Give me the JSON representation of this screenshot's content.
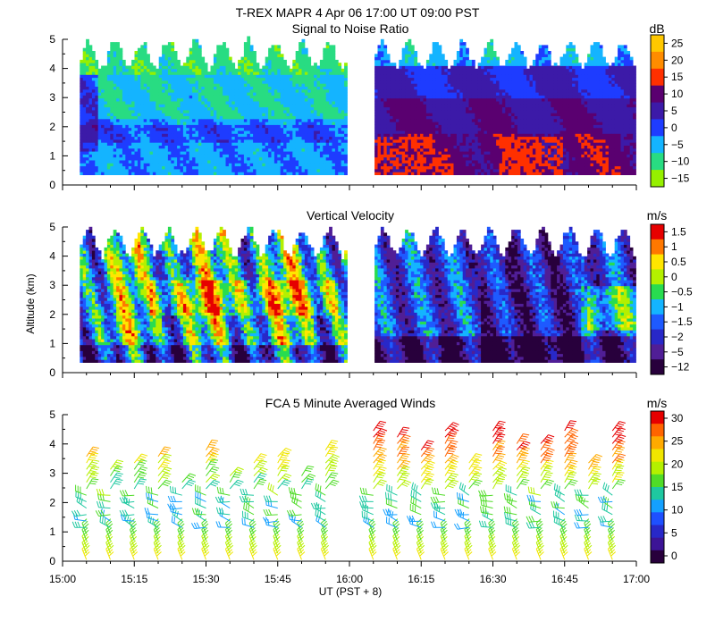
{
  "figure": {
    "title": "T-REX  MAPR  4 Apr 06  17:00 UT  09:00  PST",
    "xlabel": "UT  (PST + 8)",
    "ylabel": "Altitude (km)"
  },
  "chart_data": [
    {
      "type": "heatmap",
      "title": "Signal to Noise Ratio",
      "unit": "dB",
      "x_range_hours_ut": [
        15.0,
        17.0
      ],
      "ylim_km": [
        0,
        5
      ],
      "y_ticks": [
        "0",
        "1",
        "2",
        "3",
        "4",
        "5"
      ],
      "data_gap_ut": [
        "15:59",
        "16:05"
      ],
      "colorbar": {
        "labels": [
          "25",
          "20",
          "15",
          "10",
          "5",
          "0",
          "−5",
          "−10",
          "−15"
        ],
        "colors": [
          "#ffc800",
          "#ff8c00",
          "#ff3000",
          "#5a0070",
          "#3c1aa8",
          "#1e3cff",
          "#14b4ff",
          "#28dc82",
          "#96f000"
        ]
      }
    },
    {
      "type": "heatmap",
      "title": "Vertical Velocity",
      "unit": "m/s",
      "x_range_hours_ut": [
        15.0,
        17.0
      ],
      "ylim_km": [
        0,
        5
      ],
      "y_ticks": [
        "0",
        "1",
        "2",
        "3",
        "4",
        "5"
      ],
      "data_gap_ut": [
        "15:59",
        "16:05"
      ],
      "colorbar": {
        "labels": [
          "1.5",
          "1",
          "0.5",
          "0",
          "−0.5",
          "−1",
          "−1.5",
          "−2",
          "−5",
          "−12"
        ],
        "colors": [
          "#e60000",
          "#ff7800",
          "#ffe600",
          "#b4f000",
          "#28dc50",
          "#14b4ff",
          "#1e5aff",
          "#2828c8",
          "#501e96",
          "#28003c"
        ]
      }
    },
    {
      "type": "scatter",
      "title": "FCA 5 Minute Averaged Winds",
      "unit": "m/s",
      "x_range_hours_ut": [
        15.0,
        17.0
      ],
      "ylim_km": [
        0,
        5
      ],
      "y_ticks": [
        "0",
        "1",
        "2",
        "3",
        "4",
        "5"
      ],
      "x_ticks": [
        "15:00",
        "15:15",
        "15:30",
        "15:45",
        "16:00",
        "16:15",
        "16:30",
        "16:45",
        "17:00"
      ],
      "colorbar": {
        "labels": [
          "30",
          "25",
          "20",
          "15",
          "10",
          "5",
          "0"
        ],
        "colors": [
          "#e60000",
          "#ff6400",
          "#ffaa00",
          "#f0e600",
          "#b4f000",
          "#50dc28",
          "#1ec8a0",
          "#14a0ff",
          "#1e50ff",
          "#2828c8",
          "#3c1496",
          "#28003c"
        ]
      }
    }
  ]
}
